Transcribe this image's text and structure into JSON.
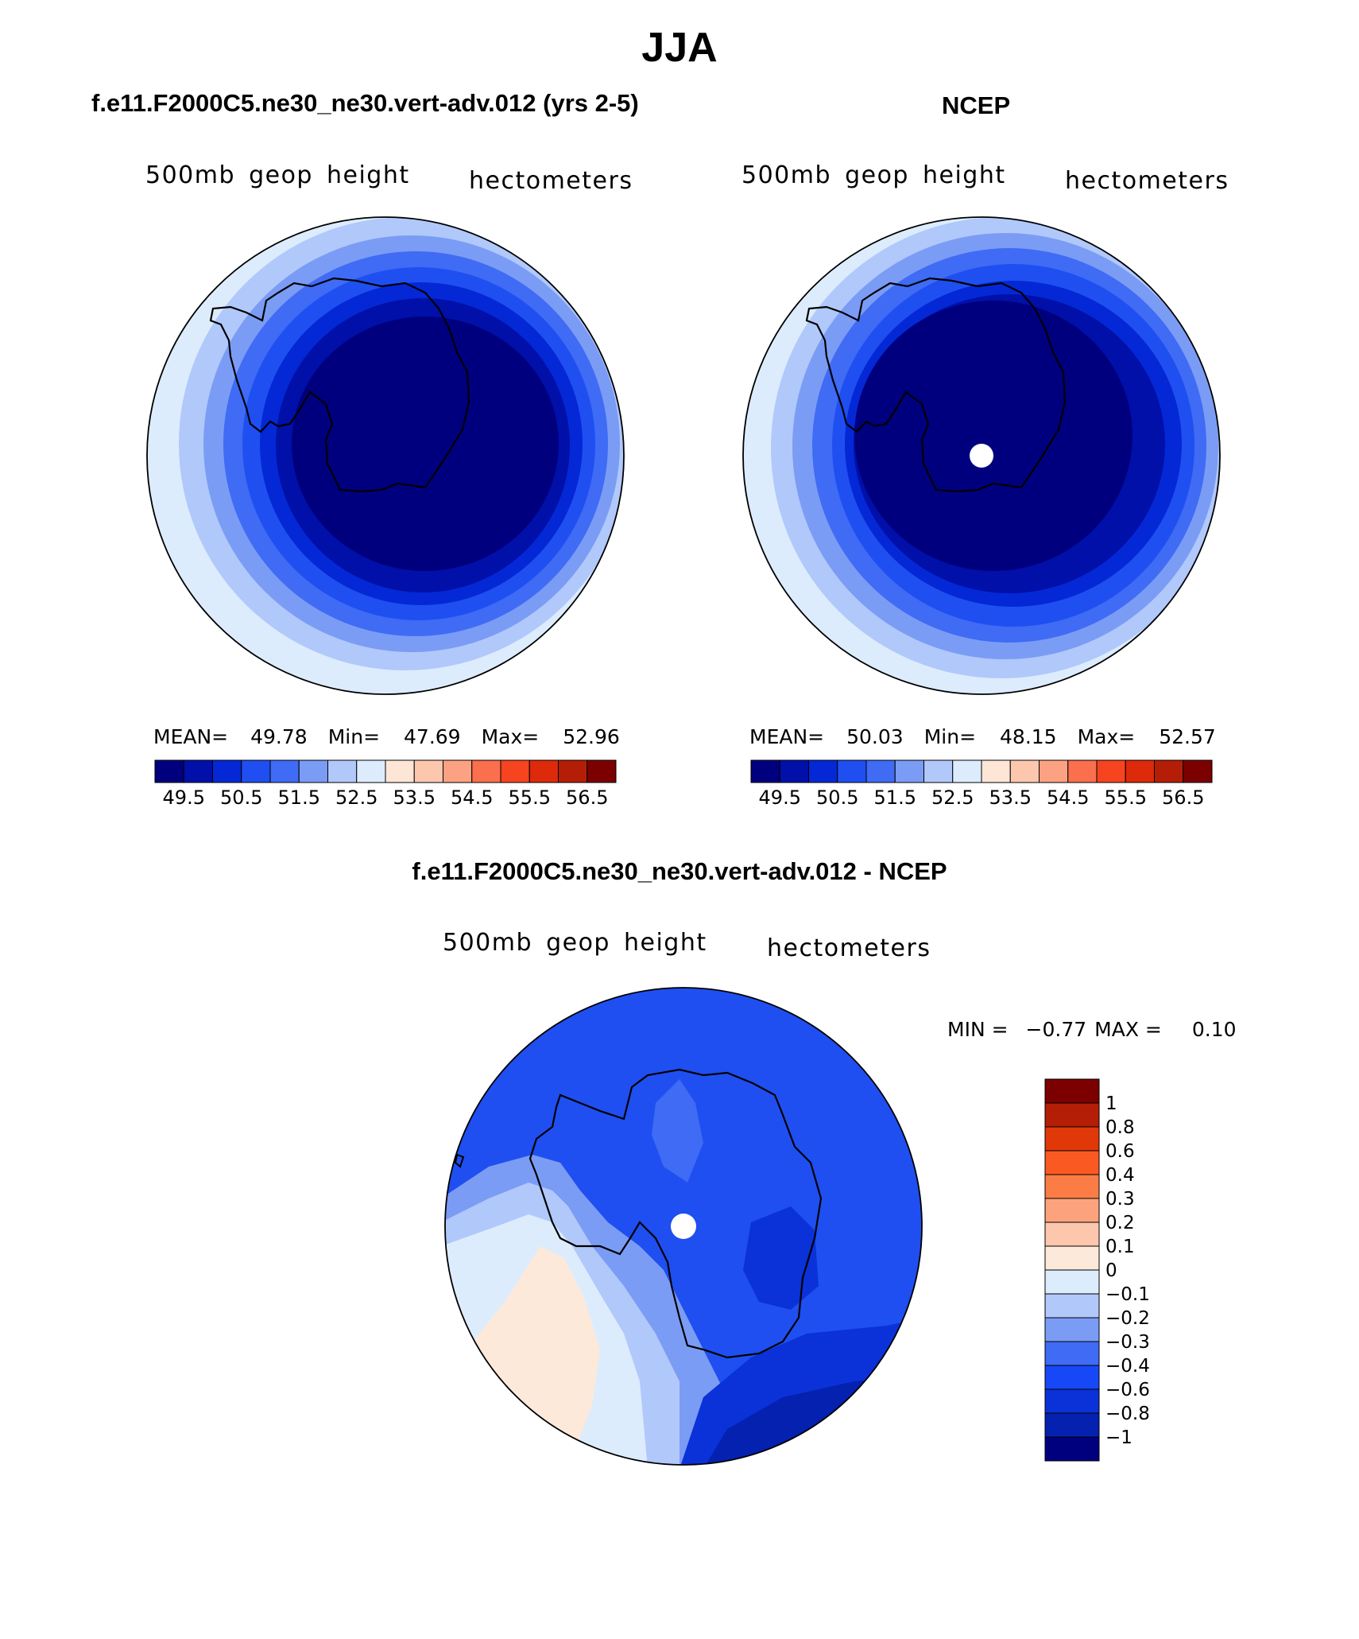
{
  "page": {
    "title": "JJA"
  },
  "panels": [
    {
      "id": "model",
      "title": "f.e11.F2000C5.ne30_ne30.vert-adv.012 (yrs 2-5)",
      "left_label": "500mb geop height",
      "right_label": "hectometers",
      "stats": {
        "mean_label": "MEAN=",
        "mean": "49.78",
        "min_label": "Min=",
        "min": "47.69",
        "max_label": "Max=",
        "max": "52.96"
      },
      "colorbar_ticks": [
        "49.5",
        "50.5",
        "51.5",
        "52.5",
        "53.5",
        "54.5",
        "55.5",
        "56.5"
      ]
    },
    {
      "id": "obs",
      "title": "NCEP",
      "left_label": "500mb geop height",
      "right_label": "hectometers",
      "stats": {
        "mean_label": "MEAN=",
        "mean": "50.03",
        "min_label": "Min=",
        "min": "48.15",
        "max_label": "Max=",
        "max": "52.57"
      },
      "colorbar_ticks": [
        "49.5",
        "50.5",
        "51.5",
        "52.5",
        "53.5",
        "54.5",
        "55.5",
        "56.5"
      ]
    }
  ],
  "diff_panel": {
    "title": "f.e11.F2000C5.ne30_ne30.vert-adv.012 - NCEP",
    "left_label": "500mb geop height",
    "right_label": "hectometers",
    "minmax": {
      "min_label": "MIN =",
      "min": "−0.77",
      "max_label": "MAX =",
      "max": "0.10"
    },
    "colorbar_ticks": [
      "1",
      "0.8",
      "0.6",
      "0.4",
      "0.3",
      "0.2",
      "0.1",
      "0",
      "−0.1",
      "−0.2",
      "−0.3",
      "−0.4",
      "−0.6",
      "−0.8",
      "−1"
    ]
  },
  "colors": {
    "mean_palette": [
      "#00007f",
      "#0010a8",
      "#0428d6",
      "#1f4ff0",
      "#3f6bf5",
      "#7b9cf5",
      "#b1c8fb",
      "#dcecfd",
      "#fde6d6",
      "#fdc7ae",
      "#fca283",
      "#fa6f4d",
      "#f5441f",
      "#dd2a0a",
      "#b51e06",
      "#7c0000"
    ],
    "diff_palette": [
      "#7c0000",
      "#b51e06",
      "#e03808",
      "#fa5a22",
      "#fc7c46",
      "#fca37e",
      "#fdc7ae",
      "#fde9da",
      "#dcecfd",
      "#b1c8fb",
      "#7b9cf5",
      "#3f6bf5",
      "#1648f7",
      "#0a32d8",
      "#0421b0",
      "#00007f"
    ]
  }
}
